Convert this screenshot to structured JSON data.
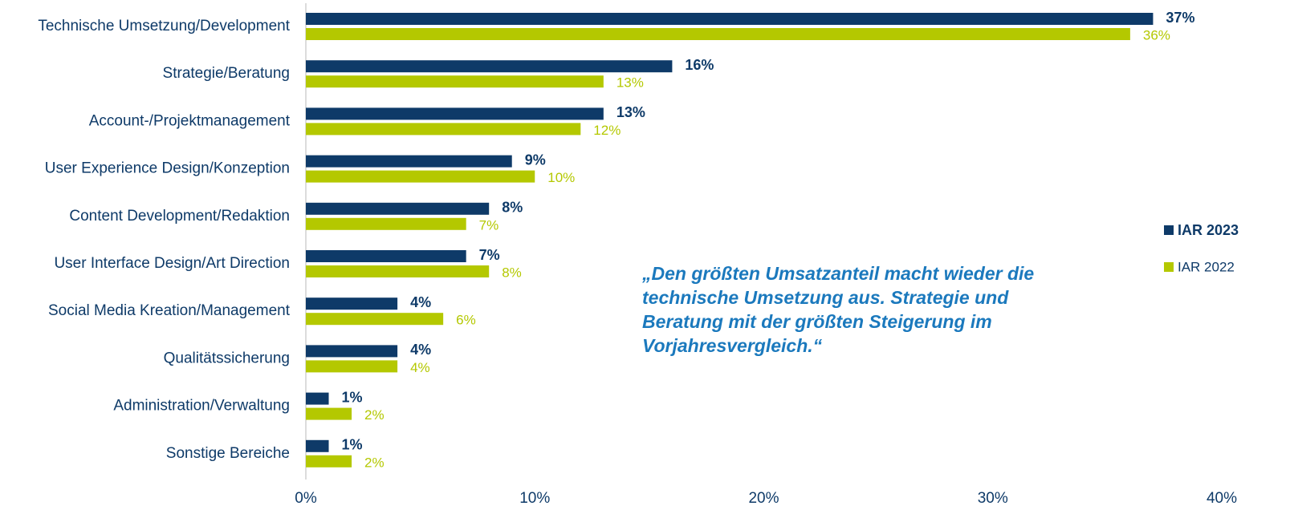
{
  "chart_data": {
    "type": "barh",
    "categories": [
      "Technische Umsetzung/Development",
      "Strategie/Beratung",
      "Account-/Projektmanagement",
      "User Experience Design/Konzeption",
      "Content Development/Redaktion",
      "User Interface Design/Art Direction",
      "Social Media Kreation/Management",
      "Qualitätssicherung",
      "Administration/Verwaltung",
      "Sonstige Bereiche"
    ],
    "series": [
      {
        "name": "IAR 2023",
        "color": "#0e3a68",
        "values": [
          37,
          16,
          13,
          9,
          8,
          7,
          4,
          4,
          1,
          1
        ],
        "value_labels": [
          "37%",
          "16%",
          "13%",
          "9%",
          "8%",
          "7%",
          "4%",
          "4%",
          "1%",
          "1%"
        ]
      },
      {
        "name": "IAR 2022",
        "color": "#b4c800",
        "values": [
          36,
          13,
          12,
          10,
          7,
          8,
          6,
          4,
          2,
          2
        ],
        "value_labels": [
          "36%",
          "13%",
          "12%",
          "10%",
          "7%",
          "8%",
          "6%",
          "4%",
          "2%",
          "2%"
        ]
      }
    ],
    "xlim": [
      0,
      40
    ],
    "xticks": [
      {
        "value": 0,
        "label": "0%"
      },
      {
        "value": 10,
        "label": "10%"
      },
      {
        "value": 20,
        "label": "20%"
      },
      {
        "value": 30,
        "label": "30%"
      },
      {
        "value": 40,
        "label": "40%"
      }
    ],
    "annotation": "„Den größten Umsatzanteil macht wieder die technische Umsetzung aus. Strategie und Beratung mit der größten Steigerung im Vorjahresvergleich.“",
    "legend": "right",
    "grid": false
  }
}
